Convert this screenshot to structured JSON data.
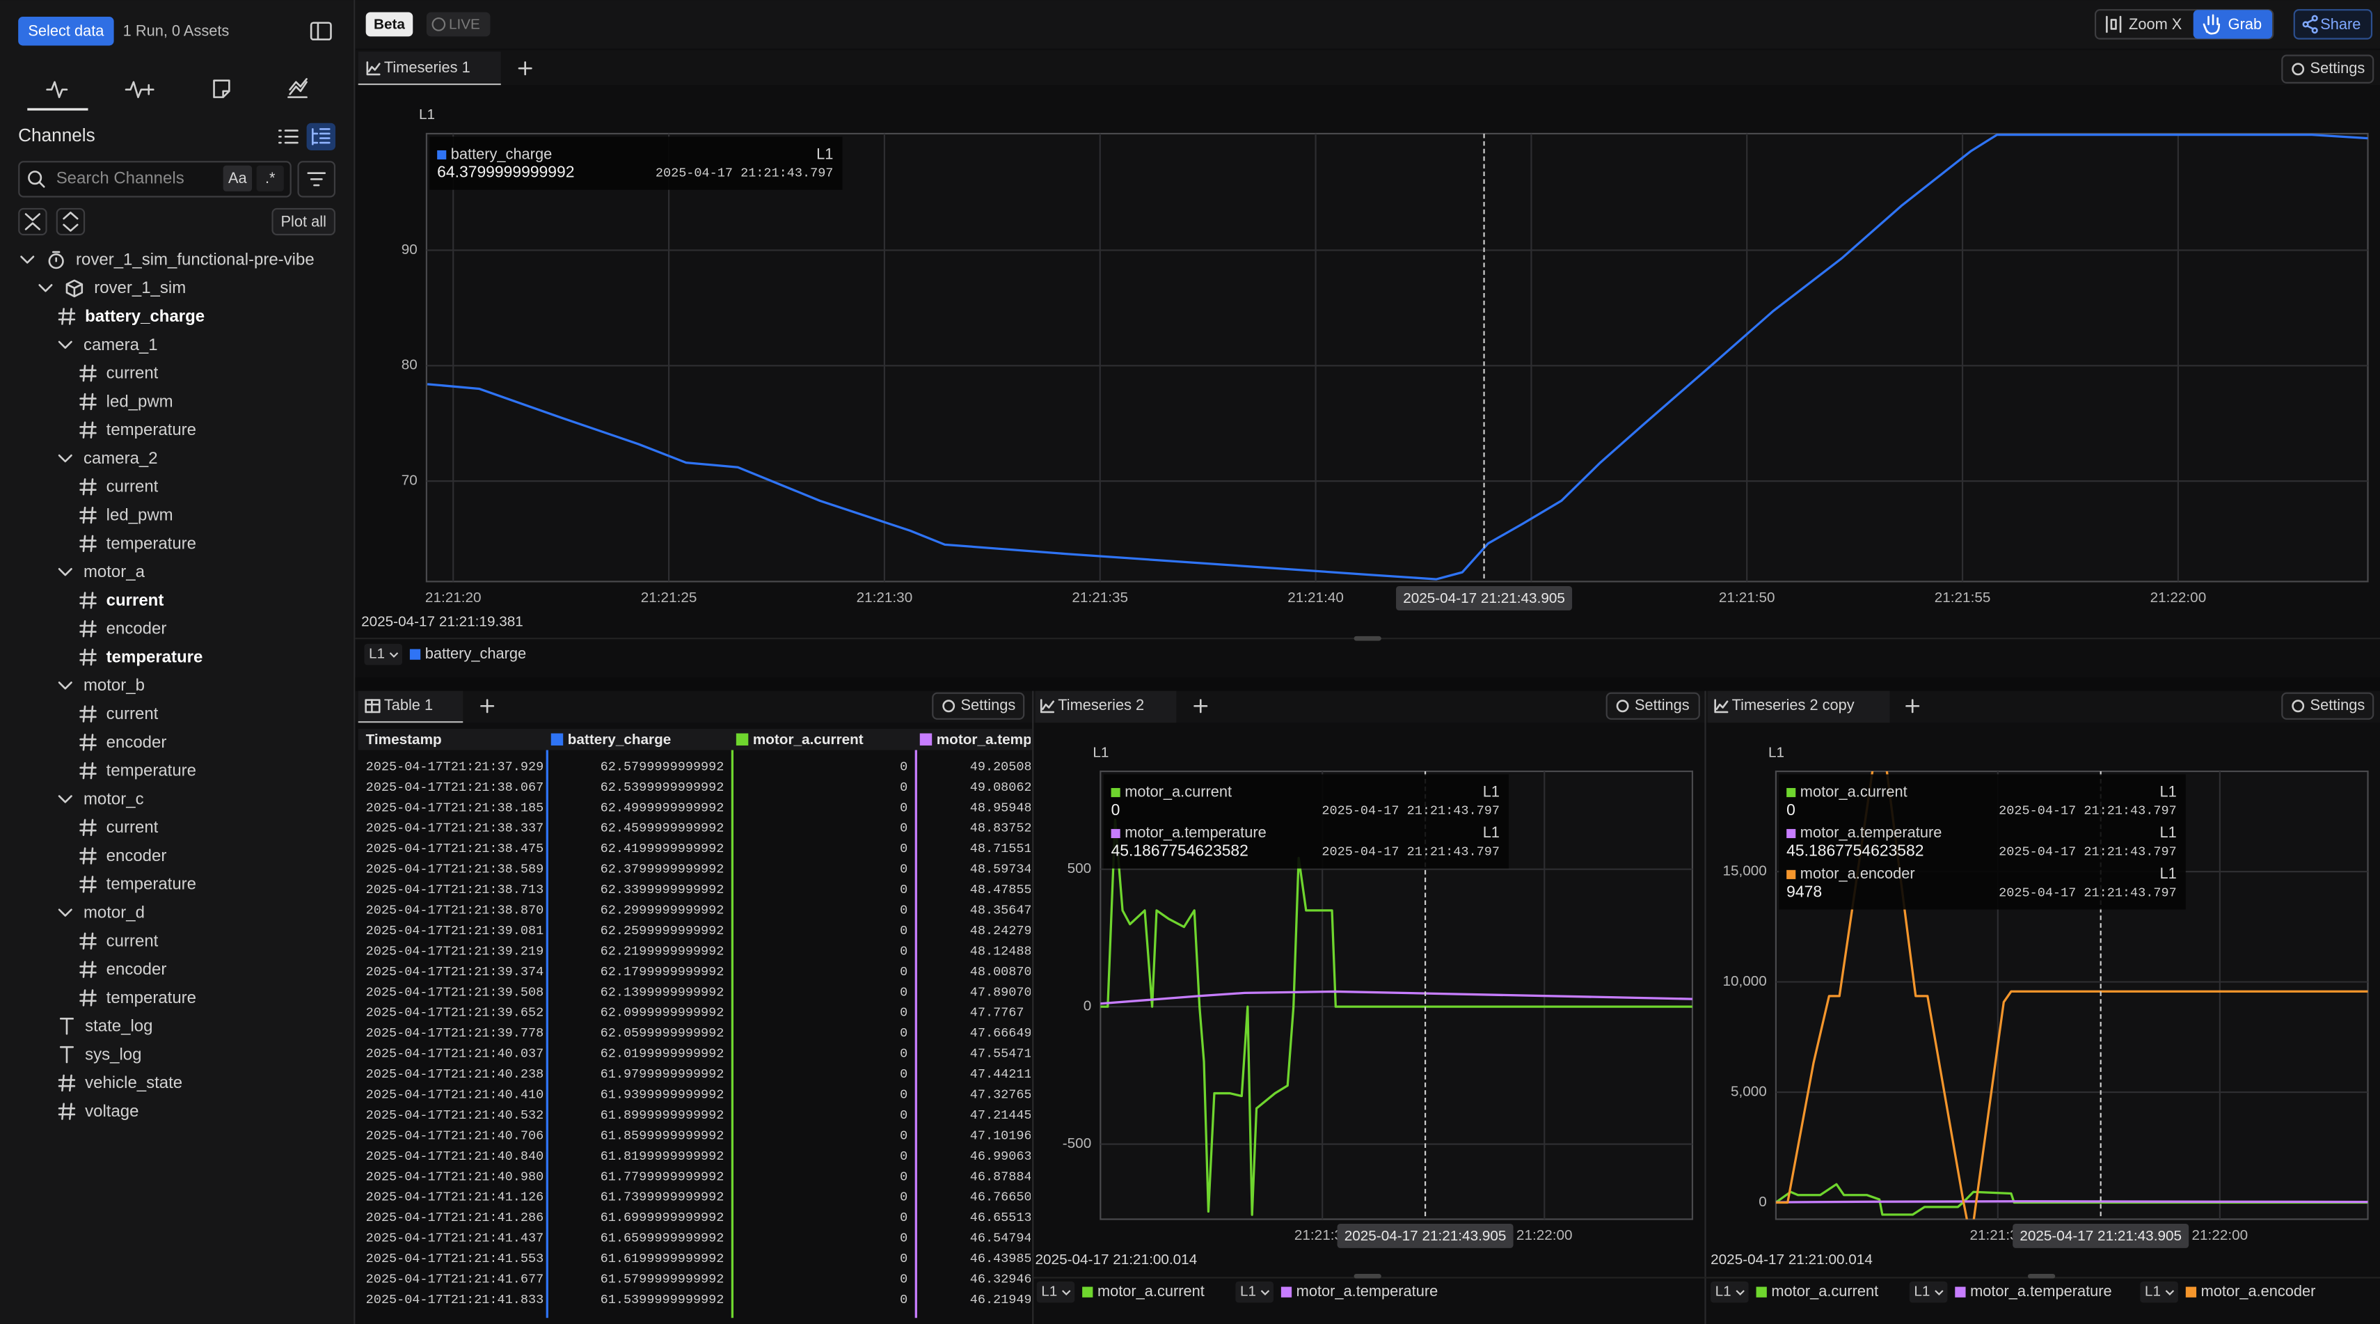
{
  "sidebar": {
    "select_button": "Select data",
    "run_info": "1 Run, 0 Assets",
    "section_title": "Channels",
    "search_placeholder": "Search Channels",
    "case_toggle": "Aa",
    "regex_toggle": ".*",
    "plot_all": "Plot all",
    "tree": [
      {
        "label": "rover_1_sim_functional-pre-vibe",
        "depth": 0,
        "kind": "run"
      },
      {
        "label": "rover_1_sim",
        "depth": 1,
        "kind": "asset"
      },
      {
        "label": "battery_charge",
        "depth": 2,
        "kind": "numeric",
        "plotted": true
      },
      {
        "label": "camera_1",
        "depth": 2,
        "kind": "folder"
      },
      {
        "label": "current",
        "depth": 3,
        "kind": "numeric"
      },
      {
        "label": "led_pwm",
        "depth": 3,
        "kind": "numeric"
      },
      {
        "label": "temperature",
        "depth": 3,
        "kind": "numeric"
      },
      {
        "label": "camera_2",
        "depth": 2,
        "kind": "folder"
      },
      {
        "label": "current",
        "depth": 3,
        "kind": "numeric"
      },
      {
        "label": "led_pwm",
        "depth": 3,
        "kind": "numeric"
      },
      {
        "label": "temperature",
        "depth": 3,
        "kind": "numeric"
      },
      {
        "label": "motor_a",
        "depth": 2,
        "kind": "folder"
      },
      {
        "label": "current",
        "depth": 3,
        "kind": "numeric",
        "plotted": true
      },
      {
        "label": "encoder",
        "depth": 3,
        "kind": "numeric"
      },
      {
        "label": "temperature",
        "depth": 3,
        "kind": "numeric",
        "plotted": true
      },
      {
        "label": "motor_b",
        "depth": 2,
        "kind": "folder"
      },
      {
        "label": "current",
        "depth": 3,
        "kind": "numeric"
      },
      {
        "label": "encoder",
        "depth": 3,
        "kind": "numeric"
      },
      {
        "label": "temperature",
        "depth": 3,
        "kind": "numeric"
      },
      {
        "label": "motor_c",
        "depth": 2,
        "kind": "folder"
      },
      {
        "label": "current",
        "depth": 3,
        "kind": "numeric"
      },
      {
        "label": "encoder",
        "depth": 3,
        "kind": "numeric"
      },
      {
        "label": "temperature",
        "depth": 3,
        "kind": "numeric"
      },
      {
        "label": "motor_d",
        "depth": 2,
        "kind": "folder"
      },
      {
        "label": "current",
        "depth": 3,
        "kind": "numeric"
      },
      {
        "label": "encoder",
        "depth": 3,
        "kind": "numeric"
      },
      {
        "label": "temperature",
        "depth": 3,
        "kind": "numeric"
      },
      {
        "label": "state_log",
        "depth": 2,
        "kind": "text"
      },
      {
        "label": "sys_log",
        "depth": 2,
        "kind": "text"
      },
      {
        "label": "vehicle_state",
        "depth": 2,
        "kind": "numeric"
      },
      {
        "label": "voltage",
        "depth": 2,
        "kind": "numeric"
      }
    ]
  },
  "toolbar": {
    "beta": "Beta",
    "live": "LIVE",
    "zoom": "Zoom X",
    "grab": "Grab",
    "share": "Share"
  },
  "timeseries_1": {
    "type": "line",
    "tab": "Timeseries 1",
    "settings": "Settings",
    "y_axis_label": "L1",
    "start_label": "2025-04-17 21:21:19.381",
    "cursor": {
      "value": 43.905,
      "label": "2025-04-17 21:21:43.905"
    },
    "xlim": [
      19.381,
      64.4
    ],
    "ylim": [
      61.3,
      100.1
    ],
    "xticks": [
      {
        "value": 20,
        "label": "21:21:20"
      },
      {
        "value": 25,
        "label": "21:21:25"
      },
      {
        "value": 30,
        "label": "21:21:30"
      },
      {
        "value": 35,
        "label": "21:21:35"
      },
      {
        "value": 40,
        "label": "21:21:40"
      },
      {
        "value": 45,
        "label": "21:21:45"
      },
      {
        "value": 50,
        "label": "21:21:50"
      },
      {
        "value": 55,
        "label": "21:21:55"
      },
      {
        "value": 60,
        "label": "21:22:00"
      }
    ],
    "yticks": [
      70,
      80,
      90
    ],
    "grid": true,
    "series": [
      {
        "name": "battery_charge",
        "axis": "L1",
        "color": "#2f74f5",
        "x": [
          19.4,
          20.6,
          22.5,
          24.3,
          25.4,
          26.6,
          28.5,
          30.6,
          31.4,
          34.2,
          37.7,
          41.2,
          42.8,
          43.4,
          44.0,
          44.8,
          45.7,
          46.6,
          47.6,
          49.2,
          50.6,
          52.2,
          53.6,
          55.2,
          55.8,
          63.1,
          64.4
        ],
        "values": [
          78.4,
          78.0,
          75.5,
          73.2,
          71.6,
          71.2,
          68.3,
          65.7,
          64.5,
          63.7,
          62.8,
          61.9,
          61.5,
          62.1,
          64.6,
          66.3,
          68.3,
          71.6,
          74.9,
          80.1,
          84.7,
          89.3,
          93.9,
          98.6,
          100.0,
          100.0,
          99.7
        ]
      }
    ],
    "tooltip": [
      {
        "name": "battery_charge",
        "axis": "L1",
        "value": 64.3799999999992,
        "time": "2025-04-17 21:21:43.797"
      }
    ]
  },
  "table_1": {
    "tab": "Table 1",
    "settings": "Settings",
    "columns": [
      {
        "name": "Timestamp"
      },
      {
        "name": "battery_charge",
        "color": "#2f74f5"
      },
      {
        "name": "motor_a.current",
        "color": "#6fd62e"
      },
      {
        "name": "motor_a.temperature",
        "color": "#c77dff"
      }
    ],
    "rows": [
      [
        "2025-04-17T21:21:37.929",
        "62.5799999999992",
        "0",
        "49.20508"
      ],
      [
        "2025-04-17T21:21:38.067",
        "62.5399999999992",
        "0",
        "49.08062"
      ],
      [
        "2025-04-17T21:21:38.185",
        "62.4999999999992",
        "0",
        "48.95948"
      ],
      [
        "2025-04-17T21:21:38.337",
        "62.4599999999992",
        "0",
        "48.83752"
      ],
      [
        "2025-04-17T21:21:38.475",
        "62.4199999999992",
        "0",
        "48.71551"
      ],
      [
        "2025-04-17T21:21:38.589",
        "62.3799999999992",
        "0",
        "48.59734"
      ],
      [
        "2025-04-17T21:21:38.713",
        "62.3399999999992",
        "0",
        "48.47855"
      ],
      [
        "2025-04-17T21:21:38.870",
        "62.2999999999992",
        "0",
        "48.35647"
      ],
      [
        "2025-04-17T21:21:39.081",
        "62.2599999999992",
        "0",
        "48.24279"
      ],
      [
        "2025-04-17T21:21:39.219",
        "62.2199999999992",
        "0",
        "48.12488"
      ],
      [
        "2025-04-17T21:21:39.374",
        "62.1799999999992",
        "0",
        "48.00870"
      ],
      [
        "2025-04-17T21:21:39.508",
        "62.1399999999992",
        "0",
        "47.89070"
      ],
      [
        "2025-04-17T21:21:39.652",
        "62.0999999999992",
        "0",
        "47.7767"
      ],
      [
        "2025-04-17T21:21:39.778",
        "62.0599999999992",
        "0",
        "47.66649"
      ],
      [
        "2025-04-17T21:21:40.037",
        "62.0199999999992",
        "0",
        "47.55471"
      ],
      [
        "2025-04-17T21:21:40.238",
        "61.9799999999992",
        "0",
        "47.44211"
      ],
      [
        "2025-04-17T21:21:40.410",
        "61.9399999999992",
        "0",
        "47.32765"
      ],
      [
        "2025-04-17T21:21:40.532",
        "61.8999999999992",
        "0",
        "47.21445"
      ],
      [
        "2025-04-17T21:21:40.706",
        "61.8599999999992",
        "0",
        "47.10196"
      ],
      [
        "2025-04-17T21:21:40.840",
        "61.8199999999992",
        "0",
        "46.99063"
      ],
      [
        "2025-04-17T21:21:40.980",
        "61.7799999999992",
        "0",
        "46.87884"
      ],
      [
        "2025-04-17T21:21:41.126",
        "61.7399999999992",
        "0",
        "46.76650"
      ],
      [
        "2025-04-17T21:21:41.286",
        "61.6999999999992",
        "0",
        "46.65513"
      ],
      [
        "2025-04-17T21:21:41.437",
        "61.6599999999992",
        "0",
        "46.54794"
      ],
      [
        "2025-04-17T21:21:41.553",
        "61.6199999999992",
        "0",
        "46.43985"
      ],
      [
        "2025-04-17T21:21:41.677",
        "61.5799999999992",
        "0",
        "46.32946"
      ],
      [
        "2025-04-17T21:21:41.833",
        "61.5399999999992",
        "0",
        "46.21949"
      ]
    ]
  },
  "timeseries_2": {
    "type": "line",
    "tab": "Timeseries 2",
    "settings": "Settings",
    "y_axis_label": "L1",
    "start_label": "2025-04-17 21:21:00.014",
    "cursor": {
      "value": 43.905,
      "label": "2025-04-17 21:21:43.905"
    },
    "xlim": [
      0.014,
      80
    ],
    "ylim": [
      -773,
      856
    ],
    "xticks": [
      {
        "value": 30,
        "label": "21:21:30"
      },
      {
        "value": 60,
        "label": "21:22:00"
      }
    ],
    "yticks": [
      -500,
      0,
      500
    ],
    "grid": true,
    "series": [
      {
        "name": "motor_a.current",
        "axis": "L1",
        "color": "#6fd62e",
        "x": [
          0,
          1,
          2,
          3,
          4,
          6,
          7,
          7.6,
          9.2,
          11.3,
          12.7,
          13.4,
          14,
          14.6,
          15.4,
          17.5,
          19.1,
          19.9,
          20.5,
          21.1,
          23.6,
          25.3,
          26.1,
          26.8,
          27.8,
          29.8,
          31.3,
          31.8,
          80
        ],
        "values": [
          0,
          0,
          680,
          350,
          300,
          350,
          0,
          350,
          320,
          290,
          350,
          0,
          -200,
          -745,
          -315,
          -315,
          -325,
          0,
          -757,
          -370,
          -315,
          -287,
          0,
          541,
          350,
          350,
          350,
          0,
          0
        ]
      },
      {
        "name": "motor_a.temperature",
        "axis": "L1",
        "color": "#c77dff",
        "x": [
          0,
          13.4,
          19.5,
          31.8,
          80
        ],
        "values": [
          11,
          39,
          50,
          55,
          28
        ]
      }
    ],
    "tooltip": [
      {
        "name": "motor_a.current",
        "axis": "L1",
        "value": 0,
        "time": "2025-04-17 21:21:43.797"
      },
      {
        "name": "motor_a.temperature",
        "axis": "L1",
        "value": 45.1867754623582,
        "time": "2025-04-17 21:21:43.797"
      }
    ]
  },
  "timeseries_3": {
    "type": "line",
    "tab": "Timeseries 2 copy",
    "settings": "Settings",
    "y_axis_label": "L1",
    "start_label": "2025-04-17 21:21:00.014",
    "cursor": {
      "value": 43.905,
      "label": "2025-04-17 21:21:43.905"
    },
    "xlim": [
      0.014,
      80
    ],
    "ylim": [
      -757,
      19546
    ],
    "xticks": [
      {
        "value": 30,
        "label": "21:21:30"
      },
      {
        "value": 60,
        "label": "21:22:00"
      }
    ],
    "yticks": [
      0,
      {
        "value": 5000,
        "label": "5,000"
      },
      {
        "value": 10000,
        "label": "10,000"
      },
      {
        "value": 15000,
        "label": "15,000"
      }
    ],
    "grid": true,
    "series": [
      {
        "name": "motor_a.current",
        "axis": "L1",
        "color": "#6fd62e",
        "x": [
          0,
          2,
          3,
          6,
          8.2,
          9.2,
          12.3,
          14,
          14.4,
          18.5,
          20.1,
          24.6,
          25.3,
          26.7,
          31.8,
          32.2,
          80
        ],
        "values": [
          0,
          480,
          340,
          340,
          830,
          340,
          340,
          140,
          -550,
          -550,
          -200,
          -200,
          0,
          480,
          410,
          0,
          0
        ]
      },
      {
        "name": "motor_a.temperature",
        "axis": "L1",
        "color": "#c77dff",
        "x": [
          0,
          13.4,
          31.8,
          80
        ],
        "values": [
          11,
          39,
          55,
          28
        ]
      },
      {
        "name": "motor_a.encoder",
        "axis": "L1",
        "color": "#f5962c",
        "x": [
          0,
          1.6,
          5.1,
          7.2,
          8.6,
          13.3,
          14.8,
          18.9,
          20.5,
          25.3,
          25.9,
          26.7,
          30.8,
          31.8,
          80
        ],
        "values": [
          0,
          0,
          6330,
          9360,
          9360,
          20100,
          20100,
          9360,
          9360,
          138,
          -900,
          -900,
          9085,
          9567,
          9567
        ]
      }
    ],
    "tooltip": [
      {
        "name": "motor_a.current",
        "axis": "L1",
        "value": 0,
        "time": "2025-04-17 21:21:43.797"
      },
      {
        "name": "motor_a.temperature",
        "axis": "L1",
        "value": 45.1867754623582,
        "time": "2025-04-17 21:21:43.797"
      },
      {
        "name": "motor_a.encoder",
        "axis": "L1",
        "value": 9478,
        "time": "2025-04-17 21:21:43.797"
      }
    ]
  }
}
